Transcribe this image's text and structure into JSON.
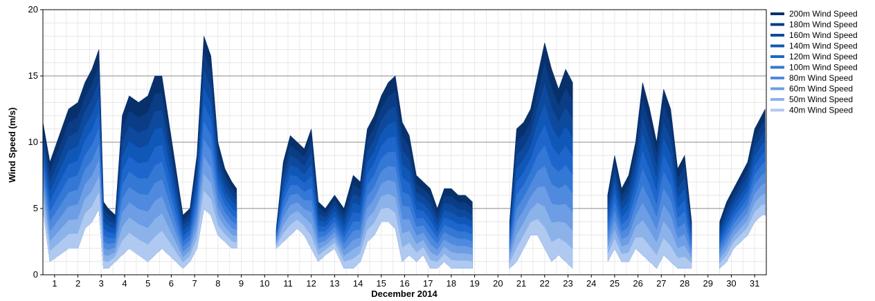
{
  "chart_data": {
    "type": "area",
    "title": "",
    "xlabel": "December 2014",
    "ylabel": "Wind Speed (m/s)",
    "x_range": [
      0.5,
      31.5
    ],
    "ylim": [
      0,
      20
    ],
    "y_ticks": [
      0,
      5,
      10,
      15,
      20
    ],
    "x_ticks": [
      "1",
      "2",
      "3",
      "4",
      "5",
      "6",
      "7",
      "8",
      "9",
      "10",
      "11",
      "12",
      "13",
      "14",
      "15",
      "16",
      "17",
      "18",
      "19",
      "20",
      "21",
      "22",
      "23",
      "24",
      "25",
      "26",
      "27",
      "28",
      "29",
      "30",
      "31"
    ],
    "grid": true,
    "legend_position": "right",
    "series": [
      {
        "name": "200m Wind Speed",
        "color": "#08306b"
      },
      {
        "name": "180m Wind Speed",
        "color": "#0a3d85"
      },
      {
        "name": "160m Wind Speed",
        "color": "#0d4a9e"
      },
      {
        "name": "140m Wind Speed",
        "color": "#1058b8"
      },
      {
        "name": "120m Wind Speed",
        "color": "#1f66cc"
      },
      {
        "name": "100m Wind Speed",
        "color": "#3478d6"
      },
      {
        "name": "80m Wind Speed",
        "color": "#4f8ade"
      },
      {
        "name": "60m Wind Speed",
        "color": "#6d9de4"
      },
      {
        "name": "50m Wind Speed",
        "color": "#8cb2ea"
      },
      {
        "name": "40m Wind Speed",
        "color": "#afc9f0"
      }
    ],
    "envelope": {
      "description_x_unit": "day of December 2014",
      "x": [
        0.5,
        0.8,
        1.2,
        1.6,
        2.0,
        2.3,
        2.6,
        2.9,
        3.1,
        3.3,
        3.6,
        3.9,
        4.2,
        4.6,
        5.0,
        5.3,
        5.6,
        6.5,
        6.8,
        7.1,
        7.4,
        7.7,
        8.0,
        8.3,
        8.6,
        8.8,
        10.5,
        10.8,
        11.1,
        11.4,
        11.7,
        12.0,
        12.3,
        12.6,
        13.0,
        13.4,
        13.8,
        14.1,
        14.4,
        14.7,
        15.0,
        15.3,
        15.6,
        15.9,
        16.2,
        16.5,
        16.8,
        17.1,
        17.4,
        17.7,
        18.0,
        18.3,
        18.6,
        18.9,
        20.5,
        20.8,
        21.1,
        21.4,
        21.7,
        22.0,
        22.3,
        22.6,
        22.9,
        23.2,
        24.7,
        25.0,
        25.3,
        25.6,
        25.9,
        26.2,
        26.5,
        26.8,
        27.1,
        27.4,
        27.7,
        28.0,
        28.3,
        29.5,
        29.8,
        30.1,
        30.4,
        30.7,
        31.0,
        31.3,
        31.45
      ],
      "top": [
        11.5,
        8.5,
        10.5,
        12.5,
        13.0,
        14.5,
        15.5,
        17.0,
        5.5,
        5.0,
        4.5,
        12.0,
        13.5,
        13.0,
        13.5,
        15.0,
        15.0,
        4.5,
        5.0,
        9.0,
        18.0,
        16.5,
        10.0,
        8.0,
        7.0,
        6.5,
        3.5,
        8.5,
        10.5,
        10.0,
        9.5,
        11.0,
        5.5,
        5.0,
        6.0,
        5.0,
        7.5,
        7.0,
        11.0,
        12.0,
        13.5,
        14.5,
        15.0,
        11.5,
        10.5,
        7.5,
        7.0,
        6.5,
        5.0,
        6.5,
        6.5,
        6.0,
        6.0,
        5.5,
        4.0,
        11.0,
        11.5,
        12.5,
        15.0,
        17.5,
        15.5,
        14.0,
        15.5,
        14.5,
        6.0,
        9.0,
        6.5,
        7.5,
        10.0,
        14.5,
        12.5,
        10.0,
        14.0,
        12.5,
        8.0,
        9.0,
        4.0,
        4.0,
        5.5,
        6.5,
        7.5,
        8.5,
        11.0,
        12.0,
        12.5
      ],
      "bottom": [
        5.0,
        1.0,
        1.5,
        2.0,
        2.0,
        3.5,
        4.0,
        5.0,
        0.5,
        0.5,
        1.0,
        1.5,
        2.0,
        1.5,
        1.0,
        1.5,
        2.0,
        0.5,
        1.0,
        2.0,
        5.0,
        4.5,
        3.0,
        2.5,
        2.0,
        2.0,
        2.0,
        2.5,
        3.0,
        3.5,
        3.0,
        2.0,
        1.0,
        1.5,
        2.0,
        0.5,
        0.5,
        1.0,
        2.5,
        3.0,
        4.0,
        4.0,
        3.5,
        1.0,
        1.5,
        1.0,
        1.5,
        0.5,
        0.5,
        1.0,
        0.5,
        0.5,
        0.5,
        0.5,
        0.5,
        1.0,
        2.0,
        3.0,
        3.0,
        2.0,
        1.0,
        1.5,
        1.0,
        0.5,
        1.0,
        2.0,
        1.0,
        1.0,
        2.0,
        1.5,
        1.0,
        0.5,
        1.5,
        1.0,
        0.5,
        0.5,
        0.5,
        0.5,
        1.0,
        2.0,
        2.5,
        3.0,
        4.0,
        4.5,
        4.5
      ]
    }
  }
}
